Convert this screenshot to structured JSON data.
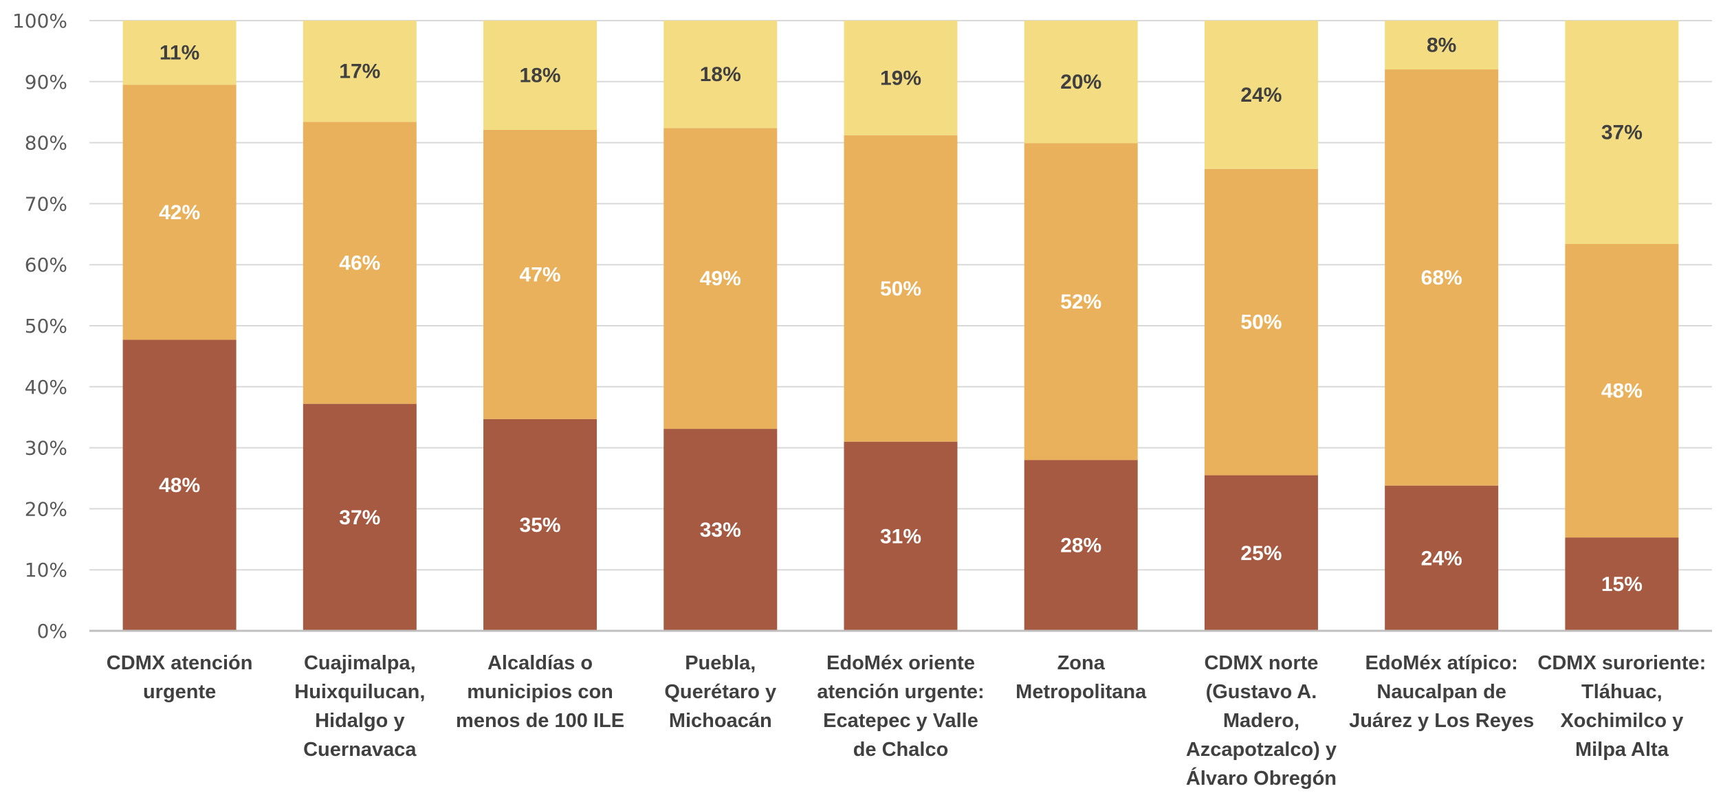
{
  "chart_data": {
    "type": "bar",
    "stacked": true,
    "title": "",
    "xlabel": "",
    "ylabel": "",
    "ylim": [
      0,
      100
    ],
    "y_ticks": [
      "0%",
      "10%",
      "20%",
      "30%",
      "40%",
      "50%",
      "60%",
      "70%",
      "80%",
      "90%",
      "100%"
    ],
    "grid": true,
    "legend": "none",
    "categories": [
      [
        "CDMX atención",
        "urgente"
      ],
      [
        "Cuajimalpa,",
        "Huixquilucan,",
        "Hidalgo y",
        "Cuernavaca"
      ],
      [
        "Alcaldías o",
        "municipios con",
        "menos de 100 ILE"
      ],
      [
        "Puebla,",
        "Querétaro y",
        "Michoacán"
      ],
      [
        "EdoMéx oriente",
        "atención urgente:",
        "Ecatepec y Valle",
        "de Chalco"
      ],
      [
        "Zona",
        "Metropolitana"
      ],
      [
        "CDMX norte",
        "(Gustavo A.",
        "Madero,",
        "Azcapotzalco) y",
        "Álvaro Obregón"
      ],
      [
        "EdoMéx atípico:",
        "Naucalpan de",
        "Juárez y Los Reyes"
      ],
      [
        "CDMX suroriente:",
        "Tláhuac,",
        "Xochimilco y",
        "Milpa Alta"
      ]
    ],
    "series": [
      {
        "name": "bottom",
        "color": "#A65A41",
        "label_color": "#ffffff",
        "values": [
          47.7,
          37.2,
          34.7,
          33.1,
          31.0,
          28.0,
          25.5,
          23.8,
          15.3
        ],
        "labels": [
          "48%",
          "37%",
          "35%",
          "33%",
          "31%",
          "28%",
          "25%",
          "24%",
          "15%"
        ]
      },
      {
        "name": "middle",
        "color": "#EAB15C",
        "label_color": "#ffffff",
        "values": [
          41.8,
          46.2,
          47.4,
          49.3,
          50.2,
          51.9,
          50.2,
          68.2,
          48.1
        ],
        "labels": [
          "42%",
          "46%",
          "47%",
          "49%",
          "50%",
          "52%",
          "50%",
          "68%",
          "48%"
        ]
      },
      {
        "name": "top",
        "color": "#F4DC82",
        "label_color": "#404040",
        "values": [
          10.5,
          16.6,
          17.9,
          17.6,
          18.8,
          20.1,
          24.3,
          8.0,
          36.6
        ],
        "labels": [
          "11%",
          "17%",
          "18%",
          "18%",
          "19%",
          "20%",
          "24%",
          "8%",
          "37%"
        ]
      }
    ]
  }
}
